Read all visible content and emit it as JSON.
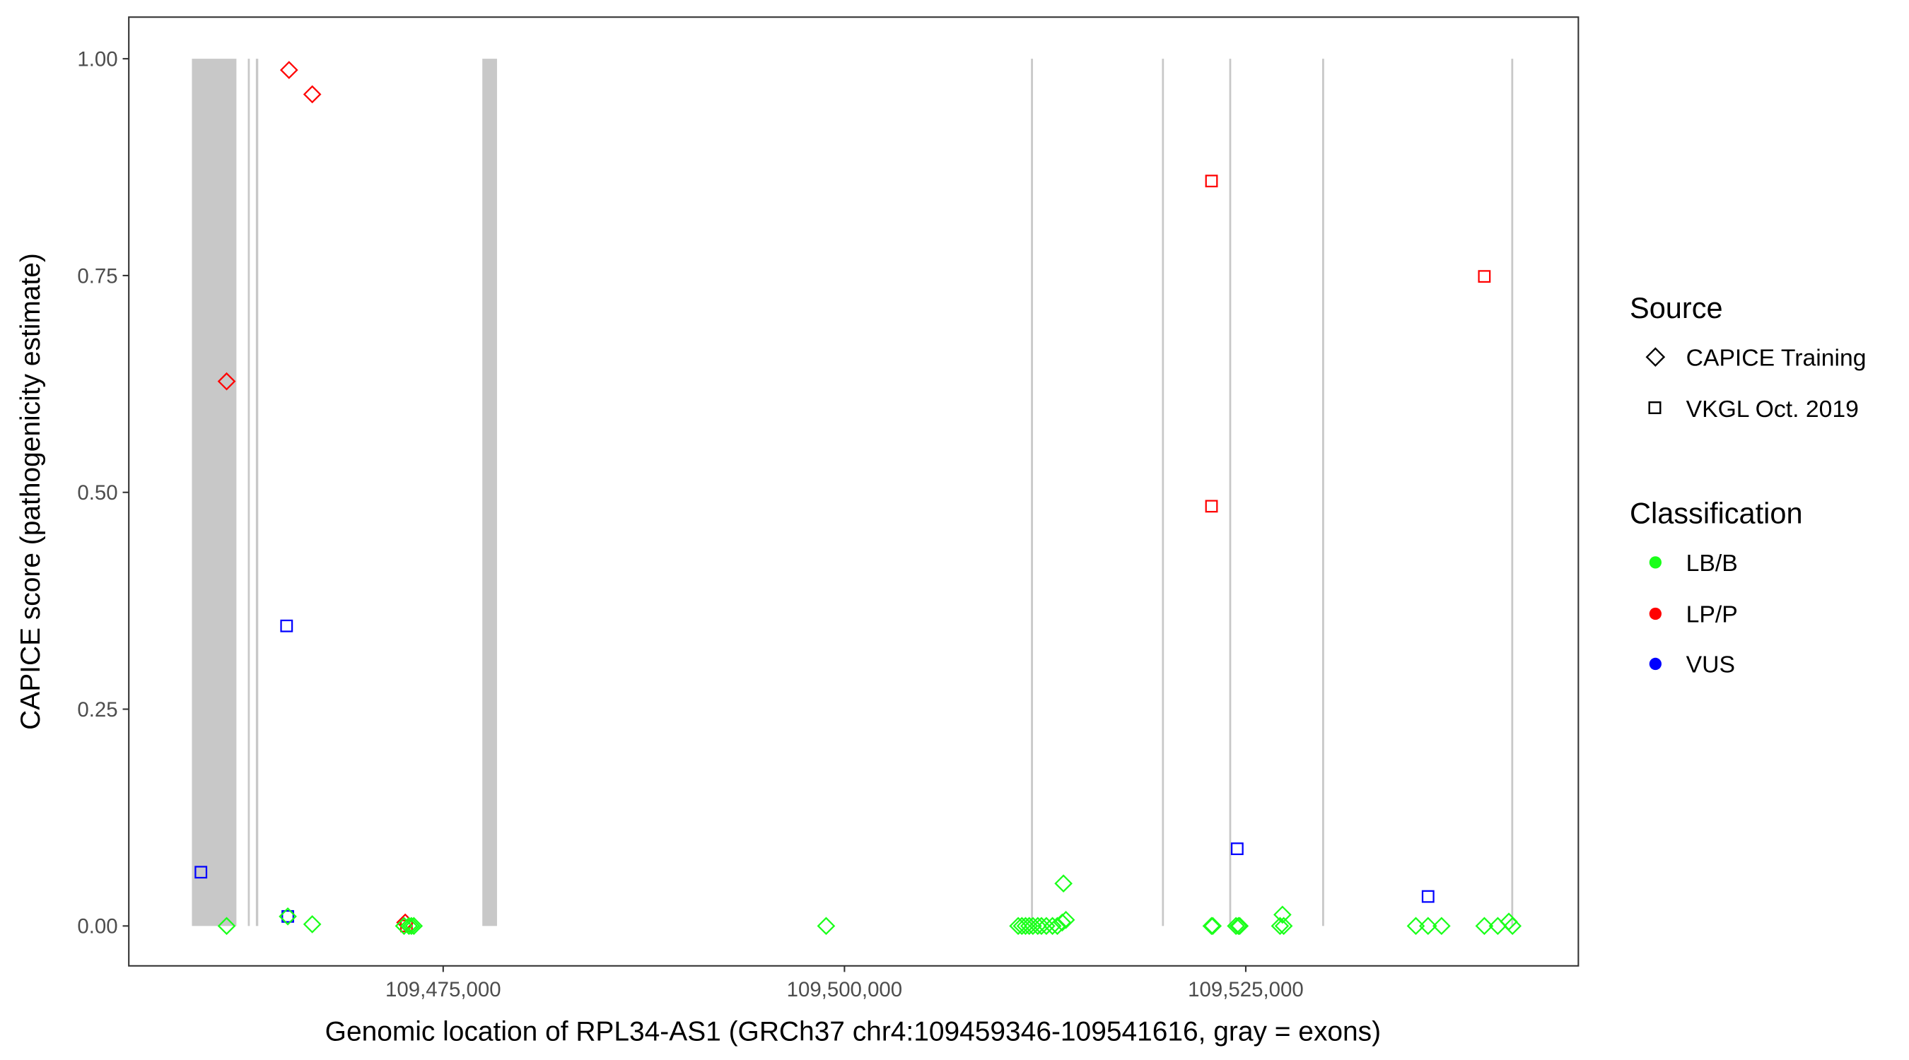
{
  "chart_data": {
    "type": "scatter",
    "xlabel": "Genomic location of RPL34-AS1 (GRCh37 chr4:109459346-109541616, gray = exons)",
    "ylabel": "CAPICE score (pathogenicity estimate)",
    "xlim": [
      109455415,
      109545720
    ],
    "ylim": [
      -0.046,
      1.048
    ],
    "x_ticks": [
      109475000,
      109500000,
      109525000
    ],
    "x_tick_labels": [
      "109,475,000",
      "109,500,000",
      "109,525,000"
    ],
    "y_ticks": [
      0,
      0.25,
      0.5,
      0.75,
      1.0
    ],
    "y_tick_labels": [
      "0.00",
      "0.25",
      "0.50",
      "0.75",
      "1.00"
    ],
    "gene_start": 109459346,
    "gene_end": 109541616,
    "exons": [
      [
        109459346,
        109462119
      ],
      [
        109462830,
        109462930
      ],
      [
        109463330,
        109463480
      ],
      [
        109477439,
        109478354
      ],
      [
        109511620,
        109511700
      ],
      [
        109519780,
        109519860
      ],
      [
        109523970,
        109524050
      ],
      [
        109529760,
        109529840
      ],
      [
        109541540,
        109541616
      ]
    ],
    "exon_color": "#C8C8C8",
    "legend": {
      "placement": "right",
      "source_title": "Source",
      "source_items": [
        {
          "label": "CAPICE Training",
          "shape": "diamond"
        },
        {
          "label": "VKGL Oct. 2019",
          "shape": "square"
        }
      ],
      "class_title": "Classification",
      "class_items": [
        {
          "label": "LB/B",
          "color": "#1AFF1A"
        },
        {
          "label": "LP/P",
          "color": "#FF0000"
        },
        {
          "label": "VUS",
          "color": "#0000FF"
        }
      ]
    },
    "points": [
      {
        "x": 109465397,
        "y": 0.987,
        "source": "CAPICE Training",
        "cls": "LP/P"
      },
      {
        "x": 109466844,
        "y": 0.959,
        "source": "CAPICE Training",
        "cls": "LP/P"
      },
      {
        "x": 109461509,
        "y": 0.628,
        "source": "CAPICE Training",
        "cls": "LP/P"
      },
      {
        "x": 109472636,
        "y": 0.004,
        "source": "CAPICE Training",
        "cls": "LP/P"
      },
      {
        "x": 109472713,
        "y": 0.0,
        "source": "VKGL Oct. 2019",
        "cls": "LP/P"
      },
      {
        "x": 109522866,
        "y": 0.859,
        "source": "VKGL Oct. 2019",
        "cls": "LP/P"
      },
      {
        "x": 109522866,
        "y": 0.484,
        "source": "VKGL Oct. 2019",
        "cls": "LP/P"
      },
      {
        "x": 109539863,
        "y": 0.749,
        "source": "VKGL Oct. 2019",
        "cls": "LP/P"
      },
      {
        "x": 109459908,
        "y": 0.062,
        "source": "VKGL Oct. 2019",
        "cls": "VUS"
      },
      {
        "x": 109465244,
        "y": 0.346,
        "source": "VKGL Oct. 2019",
        "cls": "VUS"
      },
      {
        "x": 109465320,
        "y": 0.011,
        "source": "VKGL Oct. 2019",
        "cls": "VUS"
      },
      {
        "x": 109524467,
        "y": 0.089,
        "source": "VKGL Oct. 2019",
        "cls": "VUS"
      },
      {
        "x": 109536357,
        "y": 0.034,
        "source": "VKGL Oct. 2019",
        "cls": "VUS"
      },
      {
        "x": 109461509,
        "y": 0.0,
        "source": "CAPICE Training",
        "cls": "LB/B"
      },
      {
        "x": 109465320,
        "y": 0.011,
        "source": "CAPICE Training",
        "cls": "LB/B"
      },
      {
        "x": 109466844,
        "y": 0.002,
        "source": "CAPICE Training",
        "cls": "LB/B"
      },
      {
        "x": 109472561,
        "y": 0.0,
        "source": "CAPICE Training",
        "cls": "LB/B"
      },
      {
        "x": 109472866,
        "y": 0.0,
        "source": "CAPICE Training",
        "cls": "LB/B"
      },
      {
        "x": 109473018,
        "y": 0.0,
        "source": "CAPICE Training",
        "cls": "LB/B"
      },
      {
        "x": 109473171,
        "y": 0.0,
        "source": "CAPICE Training",
        "cls": "LB/B"
      },
      {
        "x": 109498857,
        "y": 0.0,
        "source": "CAPICE Training",
        "cls": "LB/B"
      },
      {
        "x": 109510823,
        "y": 0.0,
        "source": "CAPICE Training",
        "cls": "LB/B"
      },
      {
        "x": 109511052,
        "y": 0.0,
        "source": "CAPICE Training",
        "cls": "LB/B"
      },
      {
        "x": 109511280,
        "y": 0.0,
        "source": "CAPICE Training",
        "cls": "LB/B"
      },
      {
        "x": 109511509,
        "y": 0.0,
        "source": "CAPICE Training",
        "cls": "LB/B"
      },
      {
        "x": 109511738,
        "y": 0.0,
        "source": "CAPICE Training",
        "cls": "LB/B"
      },
      {
        "x": 109512043,
        "y": 0.0,
        "source": "CAPICE Training",
        "cls": "LB/B"
      },
      {
        "x": 109512271,
        "y": 0.0,
        "source": "CAPICE Training",
        "cls": "LB/B"
      },
      {
        "x": 109512576,
        "y": 0.0,
        "source": "CAPICE Training",
        "cls": "LB/B"
      },
      {
        "x": 109512958,
        "y": 0.0,
        "source": "CAPICE Training",
        "cls": "LB/B"
      },
      {
        "x": 109513262,
        "y": 0.0,
        "source": "CAPICE Training",
        "cls": "LB/B"
      },
      {
        "x": 109513567,
        "y": 0.004,
        "source": "CAPICE Training",
        "cls": "LB/B"
      },
      {
        "x": 109513796,
        "y": 0.007,
        "source": "CAPICE Training",
        "cls": "LB/B"
      },
      {
        "x": 109513643,
        "y": 0.049,
        "source": "CAPICE Training",
        "cls": "LB/B"
      },
      {
        "x": 109522866,
        "y": 0.0,
        "source": "CAPICE Training",
        "cls": "LB/B"
      },
      {
        "x": 109522942,
        "y": 0.0,
        "source": "CAPICE Training",
        "cls": "LB/B"
      },
      {
        "x": 109524391,
        "y": 0.0,
        "source": "CAPICE Training",
        "cls": "LB/B"
      },
      {
        "x": 109524544,
        "y": 0.0,
        "source": "CAPICE Training",
        "cls": "LB/B"
      },
      {
        "x": 109524620,
        "y": 0.0,
        "source": "CAPICE Training",
        "cls": "LB/B"
      },
      {
        "x": 109527134,
        "y": 0.0,
        "source": "CAPICE Training",
        "cls": "LB/B"
      },
      {
        "x": 109527286,
        "y": 0.013,
        "source": "CAPICE Training",
        "cls": "LB/B"
      },
      {
        "x": 109527362,
        "y": 0.0,
        "source": "CAPICE Training",
        "cls": "LB/B"
      },
      {
        "x": 109535595,
        "y": 0.0,
        "source": "CAPICE Training",
        "cls": "LB/B"
      },
      {
        "x": 109536357,
        "y": 0.0,
        "source": "CAPICE Training",
        "cls": "LB/B"
      },
      {
        "x": 109537196,
        "y": 0.0,
        "source": "CAPICE Training",
        "cls": "LB/B"
      },
      {
        "x": 109539863,
        "y": 0.0,
        "source": "CAPICE Training",
        "cls": "LB/B"
      },
      {
        "x": 109540701,
        "y": 0.0,
        "source": "CAPICE Training",
        "cls": "LB/B"
      },
      {
        "x": 109541388,
        "y": 0.005,
        "source": "CAPICE Training",
        "cls": "LB/B"
      },
      {
        "x": 109541616,
        "y": 0.0,
        "source": "CAPICE Training",
        "cls": "LB/B"
      }
    ]
  }
}
